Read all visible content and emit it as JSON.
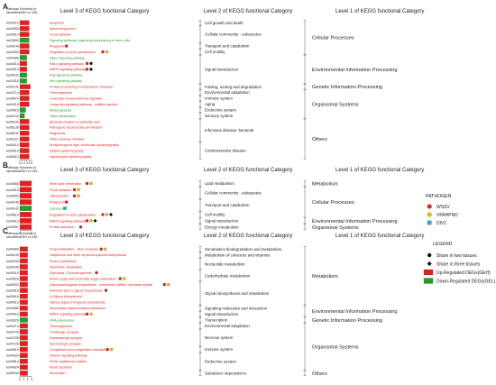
{
  "chart_data": {
    "type": "bar",
    "panels": [
      {
        "panel_label": "A",
        "col_pathway": [
          "Pathway",
          "Identifiers"
        ],
        "col_enriched": [
          "Enriched in",
          "GEH or GEL"
        ],
        "level3_title": "Level 3 of KEGG functional Category",
        "level2_title": "Level 2 of KEGG functional Category",
        "level1_title": "Level 1 of KEGG functional Category",
        "ticks": [
          "0",
          "1",
          "2",
          "3",
          "4",
          "5"
        ],
        "xmax": 5,
        "rows": [
          {
            "id": "ko04210",
            "name": "Apoptosis",
            "v": 4,
            "dir": "up",
            "marks": []
          },
          {
            "id": "ko04390",
            "name": "Adherens junction",
            "v": 4,
            "dir": "up",
            "marks": []
          },
          {
            "id": "ko04510",
            "name": "Focal adhesion",
            "v": 4,
            "dir": "up",
            "marks": []
          },
          {
            "id": "ko04550",
            "name": "Signaling pathways regulating pluripotency of stem cells",
            "v": 4,
            "dir": "down",
            "marks": []
          },
          {
            "id": "ko04144",
            "name": "Phagosome",
            "v": 4,
            "dir": "up",
            "marks": [
              "WSSV"
            ]
          },
          {
            "id": "ko04390",
            "name": "Regulation of actin cytoskeleton",
            "v": 4,
            "dir": "up",
            "marks": [
              "WSSV",
              "VPAHPND"
            ]
          },
          {
            "id": "ko04390",
            "name": "Hippo signaling pathway",
            "v": 3,
            "dir": "down",
            "marks": []
          },
          {
            "id": "ko04014",
            "name": "Ras1 signaling pathway",
            "v": 3,
            "dir": "up",
            "marks": [
              "WSSV",
              "two"
            ]
          },
          {
            "id": "ko04010",
            "name": "MAPK signaling pathway",
            "v": 3,
            "dir": "up",
            "marks": [
              "WSSV",
              "two"
            ]
          },
          {
            "id": "ko04152",
            "name": "Rap signaling pathway",
            "v": 3,
            "dir": "down",
            "marks": []
          },
          {
            "id": "ko04310",
            "name": "Wnt signaling pathway",
            "v": 3,
            "dir": "down",
            "marks": []
          },
          {
            "id": "ko04141",
            "name": "Protein processing in endoplasmic reticulum",
            "v": 4.5,
            "dir": "up",
            "marks": []
          },
          {
            "id": "ko04714",
            "name": "Thermogenesis",
            "v": 4,
            "dir": "up",
            "marks": []
          },
          {
            "id": "ko04670",
            "name": "Leukocyte transendothelial migration",
            "v": 4,
            "dir": "up",
            "marks": []
          },
          {
            "id": "ko04213",
            "name": "Longevity regulating pathway - multiple species",
            "v": 4,
            "dir": "up",
            "marks": []
          },
          {
            "id": "ko04915",
            "name": "Melanogenesis",
            "v": 2.5,
            "dir": "down",
            "marks": []
          },
          {
            "id": "ko04742",
            "name": "Taste transduction",
            "v": 2,
            "dir": "down",
            "marks": []
          },
          {
            "id": "ko05100",
            "name": "Bacterial invasion of epithelial cells",
            "v": 4,
            "dir": "up",
            "marks": []
          },
          {
            "id": "ko05130",
            "name": "Pathogenic Escherichia coli infection",
            "v": 4,
            "dir": "up",
            "marks": []
          },
          {
            "id": "ko05131",
            "name": "Shigellosis",
            "v": 4,
            "dir": "up",
            "marks": []
          },
          {
            "id": "ko05110",
            "name": "Vibrio cholerae infection",
            "v": 4,
            "dir": "up",
            "marks": []
          },
          {
            "id": "ko05412",
            "name": "Arrhythmogenic right ventricular cardiomyopathy",
            "v": 4,
            "dir": "up",
            "marks": []
          },
          {
            "id": "ko05414",
            "name": "Dilated cardiomyopathy",
            "v": 4,
            "dir": "up",
            "marks": []
          },
          {
            "id": "ko05410",
            "name": "Hypertrophic cardiomyopathy",
            "v": 4,
            "dir": "up",
            "marks": []
          }
        ],
        "level2": [
          {
            "label": "Cell growth and death",
            "from": 0,
            "to": 0
          },
          {
            "label": "Cellular community - eukaryotes",
            "from": 1,
            "to": 3
          },
          {
            "label": "Transport and catabolism",
            "from": 4,
            "to": 4
          },
          {
            "label": "Cell motility",
            "from": 5,
            "to": 5
          },
          {
            "label": "Signal transduction",
            "from": 6,
            "to": 10
          },
          {
            "label": "Folding, sorting and degradation",
            "from": 11,
            "to": 11
          },
          {
            "label": "Environmental adaptation",
            "from": 12,
            "to": 12
          },
          {
            "label": "Immune system",
            "from": 13,
            "to": 13
          },
          {
            "label": "Aging",
            "from": 14,
            "to": 14
          },
          {
            "label": "Endocrine system",
            "from": 15,
            "to": 15
          },
          {
            "label": "Sensory system",
            "from": 16,
            "to": 16
          },
          {
            "label": "Infectious disease: bacterial",
            "from": 17,
            "to": 20
          },
          {
            "label": "Cardiovascular disease",
            "from": 21,
            "to": 23
          }
        ],
        "level1": [
          {
            "label": "Cellular Processes",
            "from": 0,
            "to": 5
          },
          {
            "label": "Environmental Information Processing",
            "from": 6,
            "to": 10
          },
          {
            "label": "Genetic Information Processing",
            "from": 11,
            "to": 11
          },
          {
            "label": "Organismal Systems",
            "from": 12,
            "to": 16
          },
          {
            "label": "Others",
            "from": 17,
            "to": 23
          }
        ]
      },
      {
        "panel_label": "B",
        "col_pathway": [
          "Pathway",
          "Identifiers"
        ],
        "col_enriched": [
          "Enriched in",
          "GEH or GEL"
        ],
        "level3_title": "Level 3 of KEGG functional Category",
        "level2_title": "Level 2 of KEGG functional Category",
        "level1_title": "Level 1 of KEGG functional Category",
        "ticks": [
          "0",
          "1"
        ],
        "xmax": 1,
        "rows": [
          {
            "id": "ko00565",
            "name": "Ether lipid metabolism",
            "v": 1,
            "dir": "up",
            "marks": [
              "WSSV",
              "VPAHPND"
            ]
          },
          {
            "id": "ko04510",
            "name": "Focal adhesion",
            "v": 1,
            "dir": "up",
            "marks": [
              "WSSV",
              "VPAHPND"
            ]
          },
          {
            "id": "ko04530",
            "name": "Tight junction",
            "v": 1,
            "dir": "up",
            "marks": [
              "WSSV",
              "VPAHPND"
            ]
          },
          {
            "id": "ko04145",
            "name": "Phagosome",
            "v": 1,
            "dir": "up",
            "marks": [
              "WSSV"
            ]
          },
          {
            "id": "ko04142",
            "name": "Lysosome",
            "v": 1,
            "dir": "down",
            "marks": [
              "DIV1"
            ]
          },
          {
            "id": "ko04810",
            "name": "Regulation of actin cytoskeleton",
            "v": 1,
            "dir": "up",
            "marks": [
              "WSSV",
              "VPAHPND",
              "three"
            ]
          },
          {
            "id": "ko04013",
            "name": "MAPK signaling pathway",
            "v": 1,
            "dir": "up",
            "marks": [
              "WSSV",
              "VPAHPND",
              "three"
            ]
          },
          {
            "id": "ko03051",
            "name": "Protein activation",
            "v": 1,
            "dir": "up",
            "marks": [
              "WSSV"
            ]
          }
        ],
        "level2": [
          {
            "label": "Lipid metabolism",
            "from": 0,
            "to": 0
          },
          {
            "label": "Cellular community - eukaryotes",
            "from": 1,
            "to": 2
          },
          {
            "label": "Transport and catabolism",
            "from": 3,
            "to": 4
          },
          {
            "label": "Cell motility",
            "from": 5,
            "to": 5
          },
          {
            "label": "Signal transduction",
            "from": 6,
            "to": 6
          },
          {
            "label": "Energy metabolism",
            "from": 7,
            "to": 7
          }
        ],
        "level1": [
          {
            "label": "Metabolism",
            "from": 0,
            "to": 0
          },
          {
            "label": "Cellular Processes",
            "from": 1,
            "to": 5
          },
          {
            "label": "Environmental Information Processing",
            "from": 6,
            "to": 6
          },
          {
            "label": "Organismal Systems",
            "from": 7,
            "to": 7
          }
        ]
      },
      {
        "panel_label": "C",
        "col_pathway": [
          "Pathway",
          "Identifiers"
        ],
        "col_enriched": [
          "Enriched in",
          "GEH or GEL"
        ],
        "level3_title": "Level 3 of KEGG functional Category",
        "level2_title": "Level 2 of KEGG functional Category",
        "level1_title": "Level 1 of KEGG functional Category",
        "ticks": [
          "0",
          "1",
          "2",
          "3"
        ],
        "xmax": 3,
        "rows": [
          {
            "id": "ko00983",
            "name": "Drug metabolism - other enzymes",
            "v": 2,
            "dir": "up",
            "marks": [
              "WSSV",
              "VPAHPND"
            ]
          },
          {
            "id": "ko00130",
            "name": "Ubiquinone and other terpenoid-quinone biosynthesis",
            "v": 2,
            "dir": "up",
            "marks": []
          },
          {
            "id": "ko00230",
            "name": "Purine metabolism",
            "v": 2,
            "dir": "up",
            "marks": []
          },
          {
            "id": "ko00240",
            "name": "Pyrimidine metabolism",
            "v": 2,
            "dir": "up",
            "marks": []
          },
          {
            "id": "ko00010",
            "name": "Glycolysis / Gluconeogenesis",
            "v": 2,
            "dir": "up",
            "marks": [
              "WSSV"
            ]
          },
          {
            "id": "ko00520",
            "name": "Amino sugar and nucleotide sugar metabolism",
            "v": 2,
            "dir": "up",
            "marks": [
              "WSSV",
              "VPAHPND"
            ]
          },
          {
            "id": "ko00532",
            "name": "Glycosaminoglycan biosynthesis - chondroitin sulfate / dermatan sulfate",
            "v": 2,
            "dir": "up",
            "marks": [
              "WSSV",
              "VPAHPND"
            ]
          },
          {
            "id": "ko00515",
            "name": "Mannose type O-glycan biosynthesis",
            "v": 2,
            "dir": "up",
            "marks": [
              "WSSV"
            ]
          },
          {
            "id": "ko00510",
            "name": "N-Glycan biosynthesis",
            "v": 2,
            "dir": "up",
            "marks": []
          },
          {
            "id": "ko00513",
            "name": "Various types of N-glycan biosynthesis",
            "v": 2,
            "dir": "up",
            "marks": []
          },
          {
            "id": "ko04080",
            "name": "Neuroactive ligand-receptor interaction",
            "v": 2,
            "dir": "up",
            "marks": []
          },
          {
            "id": "ko04010",
            "name": "MAPK signaling pathway",
            "v": 2,
            "dir": "up",
            "marks": [
              "WSSV",
              "VPAHPND"
            ]
          },
          {
            "id": "ko03020",
            "name": "RNA polymerase",
            "v": 2,
            "dir": "down",
            "marks": []
          },
          {
            "id": "ko04714",
            "name": "Thermogenesis",
            "v": 2,
            "dir": "up",
            "marks": []
          },
          {
            "id": "ko04725",
            "name": "Cholinergic synapse",
            "v": 2,
            "dir": "up",
            "marks": []
          },
          {
            "id": "ko04728",
            "name": "Dopaminergic synapse",
            "v": 2,
            "dir": "up",
            "marks": []
          },
          {
            "id": "ko04726",
            "name": "Serotonergic synapse",
            "v": 2,
            "dir": "up",
            "marks": []
          },
          {
            "id": "ko04610",
            "name": "Complement and coagulation cascades",
            "v": 2,
            "dir": "up",
            "marks": [
              "WSSV",
              "VPAHPND"
            ]
          },
          {
            "id": "ko04920",
            "name": "Relaxin signaling pathway",
            "v": 2,
            "dir": "up",
            "marks": []
          },
          {
            "id": "ko04614",
            "name": "Renin-angiotensin system",
            "v": 2,
            "dir": "up",
            "marks": []
          },
          {
            "id": "ko04924",
            "name": "Renin secretion",
            "v": 2,
            "dir": "up",
            "marks": []
          },
          {
            "id": "ko05034",
            "name": "Alcoholism",
            "v": 2,
            "dir": "up",
            "marks": []
          }
        ],
        "level2": [
          {
            "label": "Xenobiotics biodegradation and metabolism",
            "from": 0,
            "to": 0
          },
          {
            "label": "Metabolism of cofactors and vitamins",
            "from": 1,
            "to": 1
          },
          {
            "label": "Nucleotide metabolism",
            "from": 2,
            "to": 3
          },
          {
            "label": "Carbohydrate metabolism",
            "from": 4,
            "to": 5
          },
          {
            "label": "Glycan biosynthesis and metabolism",
            "from": 6,
            "to": 9
          },
          {
            "label": "Signaling molecules and interaction",
            "from": 10,
            "to": 10
          },
          {
            "label": "Signal transduction",
            "from": 11,
            "to": 11
          },
          {
            "label": "Transcription",
            "from": 12,
            "to": 12
          },
          {
            "label": "Environmental adaptation",
            "from": 13,
            "to": 13
          },
          {
            "label": "Nervous system",
            "from": 14,
            "to": 16
          },
          {
            "label": "Immune system",
            "from": 17,
            "to": 17
          },
          {
            "label": "Endocrine system",
            "from": 18,
            "to": 20
          },
          {
            "label": "Substance dependence",
            "from": 21,
            "to": 21
          }
        ],
        "level1": [
          {
            "label": "Metabolism",
            "from": 0,
            "to": 9
          },
          {
            "label": "Environmental Information Processing",
            "from": 10,
            "to": 11
          },
          {
            "label": "Genetic Information Processing",
            "from": 12,
            "to": 12
          },
          {
            "label": "Organismal Systems",
            "from": 13,
            "to": 20
          },
          {
            "label": "Others",
            "from": 21,
            "to": 21
          }
        ]
      }
    ],
    "legend": {
      "pathogen_title": "PATHOGEN",
      "pathogens": [
        {
          "key": "WSSV",
          "label": "WSSV",
          "color": "#d62a2a"
        },
        {
          "key": "VPAHPND",
          "label": "VPAHPND",
          "color": "#e2c21a"
        },
        {
          "key": "DIV1",
          "label": "DIV1",
          "color": "#2ab0c8"
        }
      ],
      "legend_title": "LEGEND",
      "items": [
        {
          "key": "two",
          "label": "Share in two tissues"
        },
        {
          "key": "three",
          "label": "Share in three tissues"
        },
        {
          "key": "up",
          "label": "Up-Regulated DEGs(GEH)",
          "color": "#e02020"
        },
        {
          "key": "down",
          "label": "Down-Regulated DEGs(GEL)",
          "color": "#2a9a2a"
        }
      ]
    }
  }
}
